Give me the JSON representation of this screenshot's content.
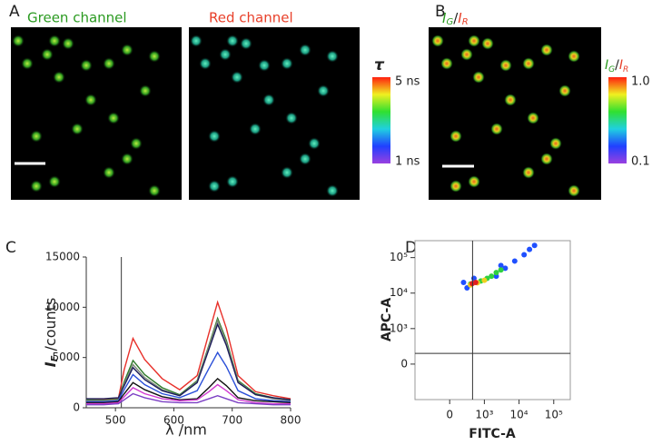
{
  "panels": {
    "a": "A",
    "b": "B",
    "c": "C",
    "d": "D"
  },
  "images": {
    "green_title": "Green channel",
    "red_title": "Red channel"
  },
  "lifetime_bar": {
    "symbol": "τ",
    "max": "5 ns",
    "min": "1 ns"
  },
  "ratio_title": [
    "I",
    "G",
    "/",
    "I",
    "R"
  ],
  "ratio_bar": {
    "label": [
      "I",
      "G",
      "/",
      "I",
      "R"
    ],
    "max": "1.0",
    "min": "0.1"
  },
  "chart_data": [
    {
      "type": "line",
      "xlabel": "λ /nm",
      "ylabel": [
        "I",
        "F",
        " /counts"
      ],
      "x": [
        450,
        480,
        505,
        515,
        530,
        550,
        580,
        610,
        640,
        660,
        675,
        690,
        710,
        740,
        770,
        800
      ],
      "xlim": [
        450,
        800
      ],
      "xticks": [
        500,
        600,
        700,
        800
      ],
      "ylim": [
        0,
        15000
      ],
      "yticks": [
        0,
        5000,
        10000,
        15000
      ],
      "vline": 510,
      "series": [
        {
          "color": "#e8302a",
          "values": [
            900,
            800,
            900,
            3800,
            6900,
            4800,
            2900,
            1800,
            3200,
            7400,
            10500,
            7900,
            3200,
            1600,
            1200,
            900
          ]
        },
        {
          "color": "#2f7a2a",
          "values": [
            800,
            750,
            850,
            2600,
            4700,
            3300,
            2000,
            1300,
            2700,
            6200,
            8900,
            6700,
            2700,
            1400,
            1000,
            800
          ]
        },
        {
          "color": "#7d8a78",
          "values": [
            700,
            700,
            800,
            2400,
            4300,
            3000,
            1800,
            1200,
            2600,
            6100,
            8700,
            6500,
            2600,
            1300,
            900,
            700
          ]
        },
        {
          "color": "#1c1c5a",
          "values": [
            900,
            900,
            1000,
            2200,
            4000,
            2800,
            1700,
            1200,
            2500,
            5800,
            8300,
            6200,
            2500,
            1300,
            1000,
            800
          ]
        },
        {
          "color": "#2a4fd8",
          "values": [
            600,
            600,
            700,
            1800,
            3300,
            2300,
            1400,
            1000,
            1700,
            3900,
            5500,
            4100,
            1700,
            900,
            700,
            600
          ]
        },
        {
          "color": "#111111",
          "values": [
            500,
            500,
            600,
            1400,
            2500,
            1800,
            1100,
            800,
            900,
            2000,
            2900,
            2200,
            1000,
            700,
            600,
            500
          ]
        },
        {
          "color": "#d13ad0",
          "values": [
            400,
            400,
            500,
            1100,
            2000,
            1400,
            900,
            700,
            800,
            1600,
            2300,
            1700,
            800,
            500,
            400,
            400
          ]
        },
        {
          "color": "#7b3fc4",
          "values": [
            300,
            300,
            400,
            800,
            1400,
            1000,
            600,
            500,
            500,
            900,
            1200,
            900,
            500,
            400,
            300,
            300
          ]
        }
      ]
    },
    {
      "type": "scatter",
      "xlabel": "FITC-A",
      "ylabel": "APC-A",
      "xlim": [
        -1000,
        300000
      ],
      "xticks": [
        0,
        {
          "value": 1000,
          "label": "10³"
        },
        {
          "value": 10000,
          "label": "10⁴"
        },
        {
          "value": 100000,
          "label": "10⁵"
        }
      ],
      "ylim": [
        -1000,
        300000
      ],
      "yticks": [
        0,
        {
          "value": 1000,
          "label": "10³"
        },
        {
          "value": 10000,
          "label": "10⁴"
        },
        {
          "value": 100000,
          "label": "10⁵"
        }
      ],
      "gates": {
        "x": 660,
        "y": 300
      },
      "series": [
        {
          "color": "#2050ff",
          "x": [
            500,
            700,
            2200,
            4000,
            7500,
            14000,
            20000,
            28000,
            400,
            3000
          ],
          "y": [
            14000,
            26000,
            30000,
            50000,
            80000,
            120000,
            170000,
            220000,
            20000,
            60000
          ]
        },
        {
          "color": "#30d040",
          "x": [
            600,
            900,
            1200,
            1600,
            2200,
            3000
          ],
          "y": [
            18000,
            22000,
            26000,
            30000,
            38000,
            45000
          ]
        },
        {
          "color": "#f0d020",
          "x": [
            600,
            800,
            1000
          ],
          "y": [
            17000,
            19500,
            23000
          ]
        },
        {
          "color": "#e02020",
          "x": [
            650,
            750
          ],
          "y": [
            18500,
            20000
          ]
        }
      ]
    }
  ]
}
